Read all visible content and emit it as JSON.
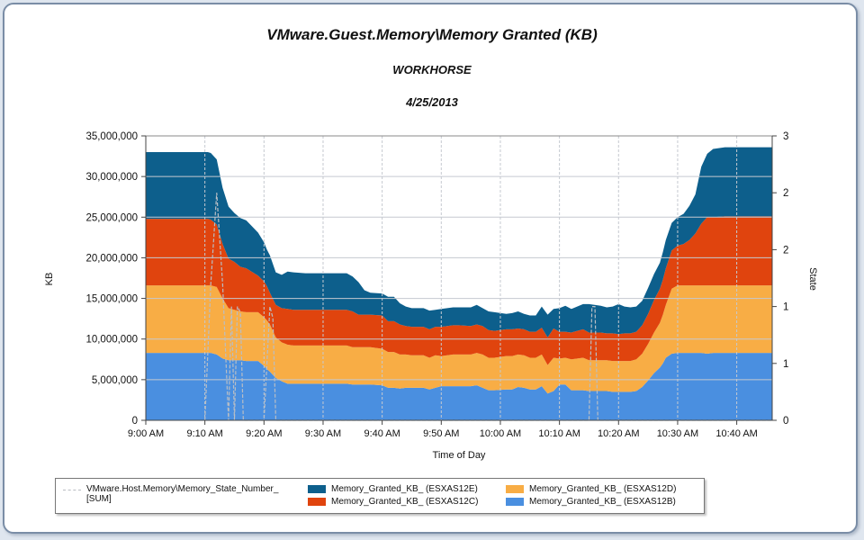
{
  "chart_data": {
    "type": "area",
    "title": "VMware.Guest.Memory\\Memory Granted (KB)",
    "subtitle": "WORKHORSE",
    "date": "4/25/2013",
    "xlabel": "Time of Day",
    "ylabel": "KB",
    "y2label": "State",
    "x_tick_labels": [
      "9:00 AM",
      "9:10 AM",
      "9:20 AM",
      "9:30 AM",
      "9:40 AM",
      "9:50 AM",
      "10:00 AM",
      "10:10 AM",
      "10:20 AM",
      "10:30 AM",
      "10:40 AM"
    ],
    "y_tick_labels": [
      "0",
      "5,000,000",
      "10,000,000",
      "15,000,000",
      "20,000,000",
      "25,000,000",
      "30,000,000",
      "35,000,000"
    ],
    "y2_tick_labels": [
      "0",
      "1",
      "1",
      "2",
      "2",
      "3"
    ],
    "ylim": [
      0,
      35000000
    ],
    "y2lim": [
      0,
      2.5
    ],
    "x_minutes_range": [
      0,
      106
    ],
    "stacked": true,
    "grid": true,
    "legend_position": "bottom",
    "x": [
      0,
      5,
      10,
      10.5,
      11,
      12,
      13,
      14,
      15,
      16,
      17,
      19,
      20,
      20.5,
      21,
      22,
      23,
      24,
      25,
      27,
      30,
      32,
      34,
      35,
      36,
      37,
      38,
      40,
      41,
      42,
      43,
      44,
      45,
      47,
      48,
      49,
      50,
      52,
      53,
      55,
      56,
      57,
      58,
      59,
      61,
      62,
      63,
      64,
      65,
      66,
      67,
      68,
      69,
      70,
      71,
      72,
      74,
      75,
      77,
      78,
      79,
      80,
      81,
      82,
      83,
      84,
      85,
      86,
      87,
      87.5,
      88,
      89,
      90,
      91,
      92,
      93,
      94,
      95,
      96,
      98,
      100,
      102,
      104,
      106
    ],
    "series": [
      {
        "name": "Memory_Granted_KB_ (ESXAS12B)",
        "color": "#4a8fe0",
        "values": [
          8300000,
          8300000,
          8300000,
          8300000,
          8300000,
          8100000,
          7600000,
          7400000,
          7400000,
          7400000,
          7300000,
          7300000,
          6700000,
          6300000,
          6000000,
          5200000,
          4800000,
          4500000,
          4500000,
          4500000,
          4500000,
          4500000,
          4500000,
          4400000,
          4400000,
          4400000,
          4400000,
          4300000,
          4000000,
          4000000,
          3900000,
          4000000,
          4000000,
          4000000,
          3800000,
          4000000,
          4200000,
          4200000,
          4200000,
          4200000,
          4300000,
          4000000,
          3700000,
          3700000,
          3800000,
          3800000,
          4100000,
          4000000,
          3800000,
          3800000,
          4200000,
          3300000,
          3600000,
          4400000,
          4400000,
          3700000,
          3700000,
          3600000,
          3600000,
          3600000,
          3500000,
          3500000,
          3500000,
          3500000,
          3600000,
          4100000,
          4900000,
          5800000,
          6500000,
          7000000,
          7700000,
          8200000,
          8300000,
          8300000,
          8300000,
          8300000,
          8300000,
          8200000,
          8300000,
          8300000,
          8300000,
          8300000,
          8300000,
          8300000
        ]
      },
      {
        "name": "Memory_Granted_KB_ (ESXAS12D)",
        "color": "#f8ad45",
        "values": [
          8300000,
          8300000,
          8300000,
          8300000,
          8300000,
          8300000,
          7400000,
          6400000,
          6200000,
          6000000,
          6000000,
          6000000,
          6000000,
          6000000,
          5800000,
          5000000,
          4800000,
          4800000,
          4700000,
          4700000,
          4700000,
          4700000,
          4700000,
          4600000,
          4600000,
          4600000,
          4600000,
          4500000,
          4400000,
          4400000,
          4200000,
          4100000,
          4000000,
          4000000,
          3900000,
          4000000,
          3700000,
          3900000,
          3900000,
          3900000,
          4000000,
          4100000,
          4000000,
          4000000,
          4100000,
          4100000,
          4000000,
          4000000,
          3900000,
          3900000,
          3900000,
          3500000,
          4100000,
          3200000,
          3300000,
          3800000,
          4000000,
          3800000,
          3800000,
          3800000,
          3800000,
          3800000,
          3800000,
          3800000,
          3900000,
          4100000,
          4500000,
          5000000,
          5500000,
          6000000,
          6500000,
          8000000,
          8300000,
          8300000,
          8300000,
          8300000,
          8300000,
          8400000,
          8300000,
          8300000,
          8300000,
          8300000,
          8300000,
          8300000
        ]
      },
      {
        "name": "Memory_Granted_KB_ (ESXAS12C)",
        "color": "#e0440e",
        "values": [
          8200000,
          8200000,
          8200000,
          8200000,
          8100000,
          7700000,
          6700000,
          6100000,
          5900000,
          5500000,
          5400000,
          4500000,
          4400000,
          4200000,
          3900000,
          4000000,
          4200000,
          4400000,
          4400000,
          4400000,
          4400000,
          4400000,
          4400000,
          4400000,
          4000000,
          4000000,
          4000000,
          4100000,
          3800000,
          3800000,
          3700000,
          3500000,
          3500000,
          3500000,
          3500000,
          3500000,
          3600000,
          3600000,
          3600000,
          3500000,
          3500000,
          3500000,
          3400000,
          3300000,
          3300000,
          3300000,
          3200000,
          3200000,
          3200000,
          3200000,
          3300000,
          3400000,
          3600000,
          3300000,
          3200000,
          3300000,
          3500000,
          3400000,
          3400000,
          3300000,
          3400000,
          3300000,
          3400000,
          3400000,
          3400000,
          3500000,
          3700000,
          4000000,
          4200000,
          4300000,
          4500000,
          4700000,
          4900000,
          5100000,
          5600000,
          6400000,
          7600000,
          8400000,
          8400000,
          8500000,
          8500000,
          8500000,
          8500000,
          8500000
        ]
      },
      {
        "name": "Memory_Granted_KB_ (ESXAS12E)",
        "color": "#0d5f8c",
        "values": [
          8200000,
          8200000,
          8200000,
          8200000,
          8200000,
          8000000,
          6900000,
          6400000,
          6000000,
          6000000,
          5900000,
          5300000,
          4800000,
          4500000,
          4600000,
          4000000,
          4100000,
          4600000,
          4600000,
          4500000,
          4500000,
          4500000,
          4500000,
          4300000,
          4000000,
          3000000,
          2700000,
          2700000,
          3000000,
          3000000,
          2600000,
          2400000,
          2300000,
          2300000,
          2300000,
          2100000,
          2200000,
          2200000,
          2200000,
          2300000,
          2400000,
          2200000,
          2300000,
          2300000,
          1900000,
          2000000,
          2100000,
          1900000,
          2000000,
          2000000,
          2600000,
          2800000,
          2400000,
          2900000,
          3200000,
          2900000,
          3100000,
          3500000,
          3300000,
          3200000,
          3300000,
          3700000,
          3300000,
          3200000,
          3100000,
          3000000,
          3200000,
          3200000,
          3200000,
          3400000,
          3500000,
          3400000,
          3500000,
          3700000,
          4200000,
          4800000,
          7000000,
          7800000,
          8400000,
          8500000,
          8500000,
          8500000,
          8500000,
          8500000
        ]
      }
    ],
    "state_series": {
      "name": "VMware.Host.Memory\\Memory_State_Number_ [SUM]",
      "color": "#b9bec5",
      "x": [
        10,
        11,
        12,
        13,
        14,
        14.5,
        15,
        15.5,
        16,
        16.5,
        20,
        21,
        21.5,
        22,
        75,
        75.5,
        76,
        76.5,
        106
      ],
      "values": [
        0,
        1.2,
        2.0,
        1.2,
        0,
        1.0,
        0,
        1.0,
        0.95,
        0,
        0,
        1.0,
        0.9,
        0,
        0,
        1.0,
        1.0,
        0,
        0
      ]
    }
  },
  "legend": {
    "items": [
      {
        "label": "VMware.Host.Memory\\Memory_State_Number_\n[SUM]",
        "color": "#b9bec5",
        "style": "dashed"
      },
      {
        "label": "Memory_Granted_KB_ (ESXAS12E)",
        "color": "#0d5f8c",
        "style": "fill"
      },
      {
        "label": "Memory_Granted_KB_ (ESXAS12D)",
        "color": "#f8ad45",
        "style": "fill"
      },
      {
        "label": "Memory_Granted_KB_ (ESXAS12C)",
        "color": "#e0440e",
        "style": "fill"
      },
      {
        "label": "Memory_Granted_KB_ (ESXAS12B)",
        "color": "#4a8fe0",
        "style": "fill"
      }
    ]
  },
  "colors": {
    "grid": "#c5c9d0",
    "axis": "#444444",
    "frame_border": "#7a8da6"
  }
}
